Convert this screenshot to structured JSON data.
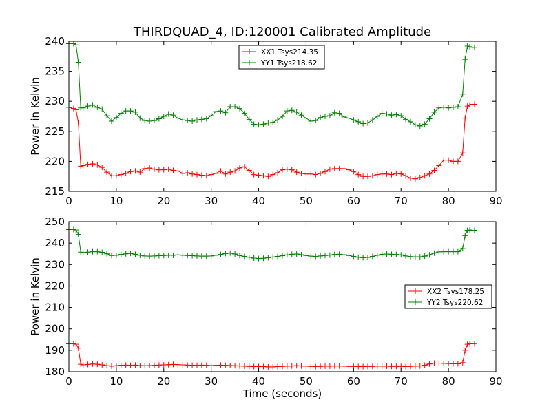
{
  "chart_data": [
    {
      "type": "line",
      "title": "THIRDQUAD_4, ID:120001 Calibrated Amplitude",
      "xlabel": "",
      "ylabel": "Power in Kelvin",
      "xlim": [
        0,
        90
      ],
      "ylim": [
        215,
        240
      ],
      "xticks": [
        0,
        10,
        20,
        30,
        40,
        50,
        60,
        70,
        80,
        90
      ],
      "yticks": [
        215,
        220,
        225,
        230,
        235,
        240
      ],
      "grid": false,
      "legend_position": "top-center",
      "series": [
        {
          "name": "XX1 Tsys214.35",
          "color": "#ff0000",
          "x": [
            0,
            1,
            1.5,
            2,
            2.5,
            3,
            4,
            5,
            6,
            7,
            8,
            9,
            10,
            11,
            12,
            13,
            14,
            15,
            16,
            17,
            18,
            19,
            20,
            21,
            22,
            23,
            24,
            25,
            26,
            27,
            28,
            29,
            30,
            31,
            32,
            33,
            34,
            35,
            36,
            37,
            38,
            39,
            40,
            41,
            42,
            43,
            44,
            45,
            46,
            47,
            48,
            49,
            50,
            51,
            52,
            53,
            54,
            55,
            56,
            57,
            58,
            59,
            60,
            61,
            62,
            63,
            64,
            65,
            66,
            67,
            68,
            69,
            70,
            71,
            72,
            73,
            74,
            75,
            76,
            77,
            78,
            79,
            80,
            81,
            82,
            83,
            83.5,
            84,
            84.5,
            85,
            85.5
          ],
          "y": [
            229,
            228.8,
            228.6,
            226.4,
            219.2,
            219.3,
            219.5,
            219.6,
            219.4,
            219,
            218.2,
            217.6,
            217.6,
            217.8,
            218,
            218.3,
            218.4,
            218.2,
            218.8,
            218.9,
            218.7,
            218.6,
            218.6,
            218.7,
            218.5,
            218.4,
            218,
            218.1,
            217.9,
            217.8,
            217.7,
            217.6,
            217.8,
            218,
            218.4,
            217.9,
            218.2,
            218.4,
            218.9,
            219.1,
            218.5,
            217.8,
            217.7,
            217.6,
            217.5,
            217.8,
            218.1,
            218.6,
            218.7,
            218.6,
            218.2,
            218,
            217.9,
            217.9,
            217.8,
            218,
            218.3,
            218.7,
            218.8,
            218.8,
            218.8,
            218.6,
            218.3,
            217.8,
            217.5,
            217.5,
            217.6,
            217.8,
            217.9,
            217.9,
            217.8,
            218,
            217.9,
            217.6,
            217.2,
            217.1,
            217.3,
            217.6,
            217.9,
            218.5,
            219.3,
            220.2,
            220.2,
            220,
            220,
            221.4,
            227.2,
            229.2,
            229.4,
            229.5,
            229.5
          ]
        },
        {
          "name": "YY1 Tsys218.62",
          "color": "#008000",
          "x": [
            0,
            1,
            1.5,
            2,
            2.5,
            3,
            4,
            5,
            6,
            7,
            8,
            9,
            10,
            11,
            12,
            13,
            14,
            15,
            16,
            17,
            18,
            19,
            20,
            21,
            22,
            23,
            24,
            25,
            26,
            27,
            28,
            29,
            30,
            31,
            32,
            33,
            34,
            35,
            36,
            37,
            38,
            39,
            40,
            41,
            42,
            43,
            44,
            45,
            46,
            47,
            48,
            49,
            50,
            51,
            52,
            53,
            54,
            55,
            56,
            57,
            58,
            59,
            60,
            61,
            62,
            63,
            64,
            65,
            66,
            67,
            68,
            69,
            70,
            71,
            72,
            73,
            74,
            75,
            76,
            77,
            78,
            79,
            80,
            81,
            82,
            83,
            83.5,
            84,
            84.5,
            85,
            85.5
          ],
          "y": [
            239.6,
            239.6,
            239.4,
            236.5,
            228.9,
            228.9,
            229.2,
            229.4,
            229,
            228.7,
            227.6,
            226.7,
            227.3,
            228,
            228.4,
            228.4,
            228.2,
            227.2,
            226.8,
            226.7,
            226.8,
            227.1,
            227.5,
            227.9,
            227.7,
            227.2,
            226.9,
            226.8,
            226.7,
            226.9,
            227,
            227.1,
            227.6,
            228.3,
            228.4,
            228.1,
            229.1,
            229.1,
            228.8,
            228,
            227,
            226.2,
            226.1,
            226.2,
            226.4,
            226.5,
            226.9,
            227.5,
            228.4,
            228.5,
            228.2,
            227.7,
            227.2,
            226.7,
            226.8,
            227.3,
            227.5,
            227.6,
            228.1,
            228,
            227.4,
            227.2,
            226.9,
            226.6,
            226.3,
            226.4,
            226.9,
            227.5,
            228,
            227.9,
            227.7,
            227.8,
            227.6,
            227,
            226.6,
            226.1,
            225.9,
            226.2,
            227.1,
            228.2,
            228.9,
            229,
            228.9,
            229,
            229.1,
            231.2,
            237,
            239.2,
            239.1,
            239,
            239
          ]
        }
      ]
    },
    {
      "type": "line",
      "title": "",
      "xlabel": "Time (seconds)",
      "ylabel": "Power in Kelvin",
      "xlim": [
        0,
        90
      ],
      "ylim": [
        180,
        250
      ],
      "xticks": [
        0,
        10,
        20,
        30,
        40,
        50,
        60,
        70,
        80,
        90
      ],
      "yticks": [
        180,
        190,
        200,
        210,
        220,
        230,
        240,
        250
      ],
      "grid": false,
      "legend_position": "center-right",
      "series": [
        {
          "name": "XX2 Tsys178.25",
          "color": "#ff0000",
          "x": [
            0,
            1,
            1.5,
            2,
            2.5,
            3,
            4,
            5,
            6,
            7,
            8,
            9,
            10,
            11,
            12,
            13,
            14,
            15,
            16,
            17,
            18,
            19,
            20,
            21,
            22,
            23,
            24,
            25,
            26,
            27,
            28,
            29,
            30,
            31,
            32,
            33,
            34,
            35,
            36,
            37,
            38,
            39,
            40,
            41,
            42,
            43,
            44,
            45,
            46,
            47,
            48,
            49,
            50,
            51,
            52,
            53,
            54,
            55,
            56,
            57,
            58,
            59,
            60,
            61,
            62,
            63,
            64,
            65,
            66,
            67,
            68,
            69,
            70,
            71,
            72,
            73,
            74,
            75,
            76,
            77,
            78,
            79,
            80,
            81,
            82,
            83,
            83.5,
            84,
            84.5,
            85,
            85.5
          ],
          "y": [
            193,
            193,
            192.8,
            191,
            183.5,
            183.2,
            183.4,
            183.6,
            183.5,
            183.2,
            182.8,
            182.6,
            182.8,
            183,
            183.1,
            183,
            183.1,
            182.9,
            182.8,
            182.9,
            183,
            183.1,
            183.2,
            183.3,
            183.4,
            183.3,
            183.2,
            183.1,
            183,
            183,
            183.1,
            183,
            182.9,
            183,
            183.1,
            183,
            182.9,
            182.8,
            182.7,
            182.6,
            182.5,
            182.4,
            182.4,
            182.4,
            182.3,
            182.3,
            182.4,
            182.5,
            182.6,
            182.7,
            182.8,
            182.7,
            182.6,
            182.5,
            182.4,
            182.5,
            182.6,
            182.6,
            182.7,
            182.7,
            182.6,
            182.5,
            182.5,
            182.4,
            182.4,
            182.5,
            182.5,
            182.6,
            182.6,
            182.6,
            182.5,
            182.5,
            182.5,
            182.4,
            182.5,
            182.6,
            182.7,
            183,
            183.6,
            184,
            184,
            183.9,
            183.8,
            183.7,
            183.7,
            184.2,
            190,
            192.8,
            193,
            193.1,
            193.1
          ]
        },
        {
          "name": "YY2 Tsys220.62",
          "color": "#008000",
          "x": [
            0,
            1,
            1.5,
            2,
            2.5,
            3,
            4,
            5,
            6,
            7,
            8,
            9,
            10,
            11,
            12,
            13,
            14,
            15,
            16,
            17,
            18,
            19,
            20,
            21,
            22,
            23,
            24,
            25,
            26,
            27,
            28,
            29,
            30,
            31,
            32,
            33,
            34,
            35,
            36,
            37,
            38,
            39,
            40,
            41,
            42,
            43,
            44,
            45,
            46,
            47,
            48,
            49,
            50,
            51,
            52,
            53,
            54,
            55,
            56,
            57,
            58,
            59,
            60,
            61,
            62,
            63,
            64,
            65,
            66,
            67,
            68,
            69,
            70,
            71,
            72,
            73,
            74,
            75,
            76,
            77,
            78,
            79,
            80,
            81,
            82,
            83,
            83.5,
            84,
            84.5,
            85,
            85.5
          ],
          "y": [
            246.3,
            246.3,
            246.1,
            244,
            235.8,
            235.6,
            235.8,
            236,
            236,
            235.7,
            235,
            234.2,
            234.3,
            234.7,
            235,
            235.2,
            234.8,
            234.3,
            234,
            233.9,
            234,
            234.1,
            234.2,
            234.3,
            234.3,
            234.5,
            234.3,
            234.2,
            234.1,
            234,
            233.9,
            233.9,
            234,
            234.3,
            234.7,
            235.1,
            235.3,
            234.9,
            234.2,
            233.8,
            233.4,
            233,
            232.8,
            232.9,
            233.2,
            233.5,
            233.8,
            234.1,
            234.5,
            234.8,
            234.9,
            234.6,
            234.2,
            233.9,
            233.8,
            234,
            234.2,
            234.4,
            234.7,
            234.8,
            234.6,
            234.2,
            233.8,
            233.4,
            233.2,
            233.3,
            233.8,
            234.3,
            234.8,
            234.9,
            234.8,
            234.7,
            234.5,
            234,
            233.7,
            233.6,
            233.6,
            233.9,
            234.5,
            235.3,
            235.9,
            236,
            236,
            236,
            236,
            237.5,
            243.5,
            246,
            246.1,
            246,
            246
          ]
        }
      ]
    }
  ]
}
